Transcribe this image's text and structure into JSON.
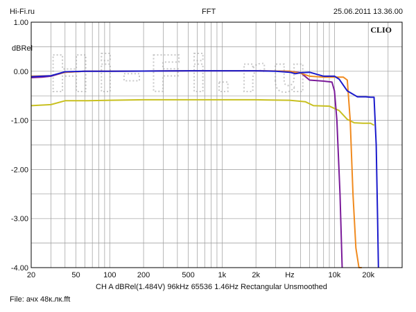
{
  "header": {
    "left": "Hi-Fi.ru",
    "center": "FFT",
    "right": "25.06.2011 13.36.00"
  },
  "brand": "CLIO",
  "watermark": "Hi-Fi.ru",
  "footer": {
    "measurement": "CH A  dBRel(1.484V)  96kHz  65536  1.46Hz  Rectangular  Unsmoothed",
    "file": "File: ачх 48к.лк.fft"
  },
  "colors": {
    "background": "#ffffff",
    "grid": "#9a9a9a",
    "axis": "#000000",
    "series": [
      "#1a1acc",
      "#7a1a99",
      "#f08a1e",
      "#c8c020"
    ]
  },
  "chart_data": {
    "type": "line",
    "title": "FFT",
    "xlabel": "Hz",
    "ylabel": "dBRel",
    "x_scale": "log",
    "xlim": [
      20,
      40000
    ],
    "ylim": [
      -4,
      1
    ],
    "grid": true,
    "x_tick_labels": [
      {
        "value": 20,
        "label": "20"
      },
      {
        "value": 50,
        "label": "50"
      },
      {
        "value": 100,
        "label": "100"
      },
      {
        "value": 200,
        "label": "200"
      },
      {
        "value": 500,
        "label": "500"
      },
      {
        "value": 1000,
        "label": "1k"
      },
      {
        "value": 2000,
        "label": "2k"
      },
      {
        "value": 4000,
        "label": "Hz"
      },
      {
        "value": 10000,
        "label": "10k"
      },
      {
        "value": 20000,
        "label": "20k"
      }
    ],
    "y_tick_labels": [
      {
        "value": 1,
        "label": "1.00"
      },
      {
        "value": 0,
        "label": "0.00"
      },
      {
        "value": -1,
        "label": "-1.00"
      },
      {
        "value": -2,
        "label": "-2.00"
      },
      {
        "value": -3,
        "label": "-3.00"
      },
      {
        "value": -4,
        "label": "-4.00"
      }
    ],
    "series": [
      {
        "color": "#c8c020",
        "points": [
          [
            20,
            -0.7
          ],
          [
            30,
            -0.68
          ],
          [
            40,
            -0.6
          ],
          [
            60,
            -0.6
          ],
          [
            100,
            -0.59
          ],
          [
            200,
            -0.58
          ],
          [
            500,
            -0.58
          ],
          [
            1000,
            -0.58
          ],
          [
            2000,
            -0.58
          ],
          [
            4000,
            -0.59
          ],
          [
            5500,
            -0.62
          ],
          [
            6500,
            -0.7
          ],
          [
            9000,
            -0.71
          ],
          [
            11000,
            -0.8
          ],
          [
            13000,
            -0.98
          ],
          [
            15000,
            -1.05
          ],
          [
            18000,
            -1.06
          ],
          [
            21000,
            -1.06
          ],
          [
            22500,
            -1.1
          ]
        ]
      },
      {
        "color": "#7a1a99",
        "points": [
          [
            20,
            -0.13
          ],
          [
            25,
            -0.12
          ],
          [
            30,
            -0.1
          ],
          [
            40,
            -0.02
          ],
          [
            60,
            0.0
          ],
          [
            100,
            0.0
          ],
          [
            500,
            0.01
          ],
          [
            1000,
            0.01
          ],
          [
            2000,
            0.01
          ],
          [
            4000,
            0.0
          ],
          [
            5000,
            -0.03
          ],
          [
            6000,
            -0.18
          ],
          [
            8000,
            -0.2
          ],
          [
            9500,
            -0.22
          ],
          [
            10000,
            -0.4
          ],
          [
            10500,
            -1.0
          ],
          [
            11200,
            -2.5
          ],
          [
            11700,
            -4.0
          ]
        ]
      },
      {
        "color": "#f08a1e",
        "points": [
          [
            20,
            -0.1
          ],
          [
            30,
            -0.09
          ],
          [
            40,
            -0.02
          ],
          [
            60,
            0.0
          ],
          [
            100,
            0.0
          ],
          [
            500,
            0.01
          ],
          [
            1000,
            0.01
          ],
          [
            2000,
            0.01
          ],
          [
            4000,
            0.0
          ],
          [
            5000,
            -0.04
          ],
          [
            6000,
            -0.1
          ],
          [
            8000,
            -0.12
          ],
          [
            10000,
            -0.12
          ],
          [
            12000,
            -0.12
          ],
          [
            13000,
            -0.18
          ],
          [
            13800,
            -1.0
          ],
          [
            14600,
            -2.5
          ],
          [
            15500,
            -3.6
          ],
          [
            16500,
            -4.0
          ],
          [
            17500,
            -4.0
          ]
        ]
      },
      {
        "color": "#1a1acc",
        "points": [
          [
            20,
            -0.11
          ],
          [
            30,
            -0.09
          ],
          [
            40,
            -0.01
          ],
          [
            60,
            0.0
          ],
          [
            100,
            0.0
          ],
          [
            500,
            0.01
          ],
          [
            1000,
            0.01
          ],
          [
            2000,
            0.01
          ],
          [
            3000,
            0.0
          ],
          [
            4000,
            -0.02
          ],
          [
            4500,
            -0.05
          ],
          [
            5000,
            -0.03
          ],
          [
            6000,
            -0.02
          ],
          [
            8000,
            -0.1
          ],
          [
            10000,
            -0.1
          ],
          [
            11000,
            -0.16
          ],
          [
            13000,
            -0.4
          ],
          [
            16000,
            -0.52
          ],
          [
            19000,
            -0.52
          ],
          [
            21000,
            -0.53
          ],
          [
            22500,
            -0.53
          ],
          [
            23500,
            -1.5
          ],
          [
            24200,
            -3.0
          ],
          [
            24600,
            -4.0
          ]
        ]
      }
    ]
  }
}
